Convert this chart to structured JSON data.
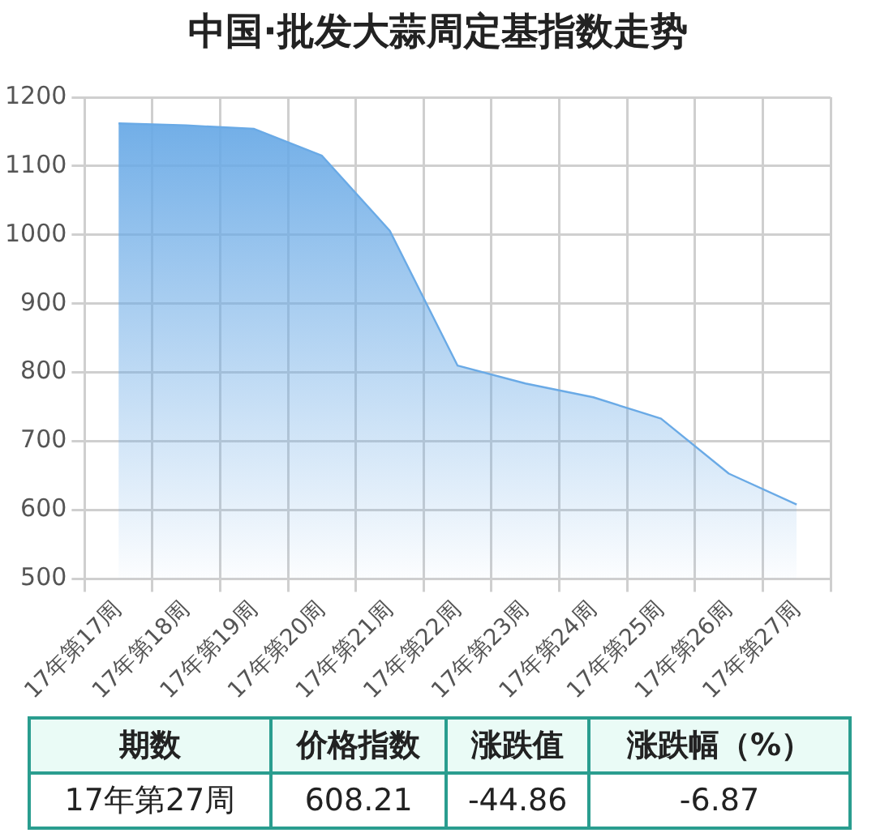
{
  "chart_data": {
    "type": "area",
    "title": "中国·批发大蒜周定基指数走势",
    "categories": [
      "17年第17周",
      "17年第18周",
      "17年第19周",
      "17年第20周",
      "17年第21周",
      "17年第22周",
      "17年第23周",
      "17年第24周",
      "17年第25周",
      "17年第26周",
      "17年第27周"
    ],
    "values": [
      1162,
      1159,
      1154,
      1115,
      1006,
      810,
      784,
      764,
      733,
      653,
      608.21
    ],
    "color": "#6aaae6",
    "ylim": [
      500,
      1200
    ],
    "yticks": [
      500,
      600,
      700,
      800,
      900,
      1000,
      1100,
      1200
    ],
    "grid": true,
    "legend": false,
    "annotations": [
      "期数",
      "价格指数",
      "涨跌值",
      "涨跌幅（%）",
      "17年第27周",
      "608.21",
      "-44.86",
      "-6.87"
    ]
  }
}
